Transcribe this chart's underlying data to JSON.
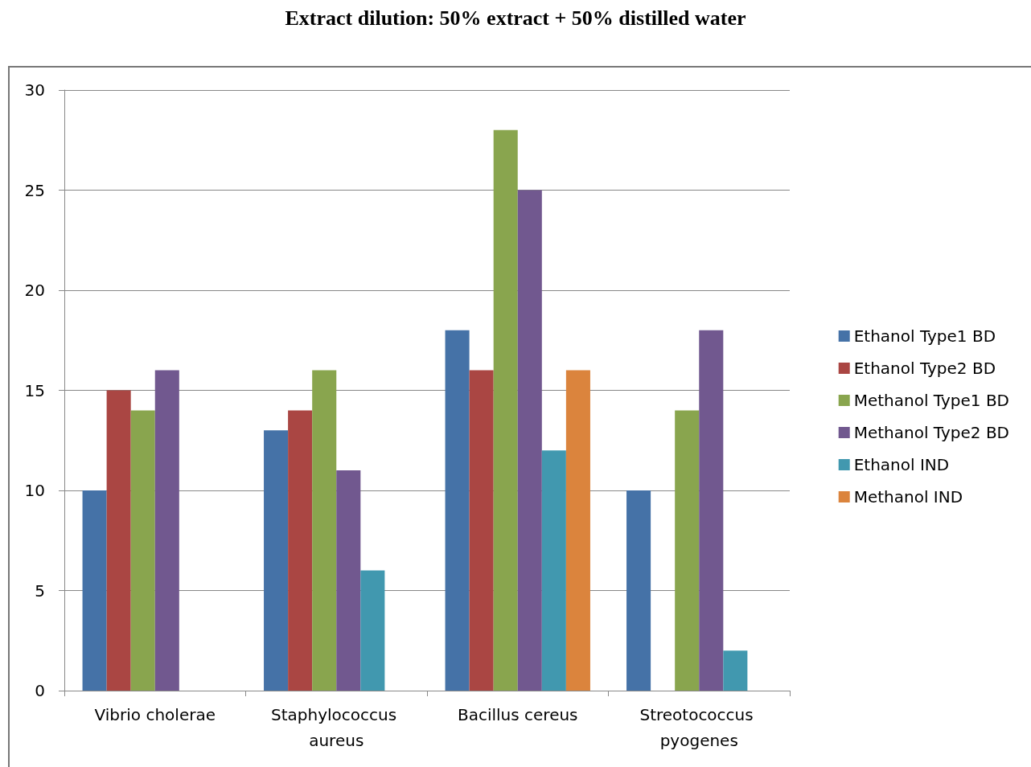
{
  "chart_data": {
    "type": "bar",
    "title": "Extract dilution: 50% extract + 50% distilled water",
    "categories": [
      "Vibrio cholerae",
      "Staphylococcus aureus",
      "Bacillus cereus",
      "Streotococcus pyogenes"
    ],
    "series": [
      {
        "name": "Ethanol Type1 BD",
        "color": "#4572a7",
        "values": [
          10,
          13,
          18,
          10
        ]
      },
      {
        "name": "Ethanol Type2 BD",
        "color": "#aa4643",
        "values": [
          15,
          14,
          16,
          null
        ]
      },
      {
        "name": "Methanol Type1 BD",
        "color": "#89a54e",
        "values": [
          14,
          16,
          28,
          14
        ]
      },
      {
        "name": "Methanol Type2 BD",
        "color": "#71588f",
        "values": [
          16,
          11,
          25,
          18
        ]
      },
      {
        "name": "Ethanol IND",
        "color": "#4198af",
        "values": [
          null,
          6,
          12,
          2
        ]
      },
      {
        "name": "Methanol IND",
        "color": "#db843d",
        "values": [
          null,
          null,
          16,
          null
        ]
      }
    ],
    "ylim": [
      0,
      30
    ],
    "yticks": [
      0,
      5,
      10,
      15,
      20,
      25,
      30
    ],
    "grid": "y",
    "legend": "right"
  }
}
